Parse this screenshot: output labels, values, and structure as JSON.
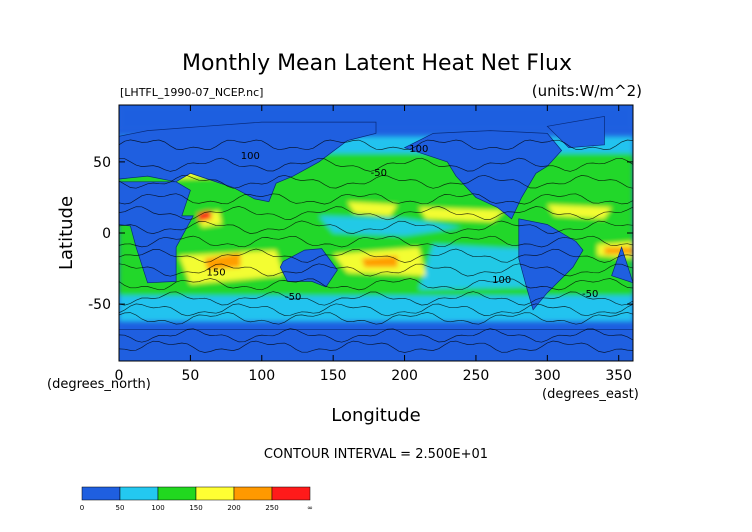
{
  "chart_data": {
    "type": "heatmap",
    "title": "Monthly Mean Latent Heat Net Flux",
    "file_label": "[LHTFL_1990-07_NCEP.nc]",
    "units_label": "(units:W/m^2)",
    "xlabel": "Longitude",
    "ylabel": "Latitude",
    "x_unit_label": "(degrees_east)",
    "y_unit_label": "(degrees_north)",
    "xlim": [
      0,
      360
    ],
    "ylim": [
      -90,
      90
    ],
    "xticks": [
      0,
      50,
      100,
      150,
      200,
      250,
      300,
      350
    ],
    "yticks": [
      -50,
      0,
      50
    ],
    "contour_interval_label": "CONTOUR INTERVAL = 2.500E+01",
    "colorbar": {
      "levels": [
        0,
        50,
        100,
        150,
        200,
        250,
        "∞"
      ],
      "colors": [
        "#1f5fe0",
        "#23c8f0",
        "#21d81f",
        "#ffff33",
        "#ff9900",
        "#ff1a1a"
      ]
    },
    "contour_labels": [
      {
        "text": "100",
        "lon": 92,
        "lat": 52
      },
      {
        "text": "-50",
        "lon": 182,
        "lat": 40
      },
      {
        "text": "100",
        "lon": 268,
        "lat": -35
      },
      {
        "text": "-50",
        "lon": 122,
        "lat": -47
      },
      {
        "text": "100",
        "lon": 210,
        "lat": 57
      },
      {
        "text": "150",
        "lon": 68,
        "lat": -30
      },
      {
        "text": "-50",
        "lon": 330,
        "lat": -45
      }
    ]
  }
}
